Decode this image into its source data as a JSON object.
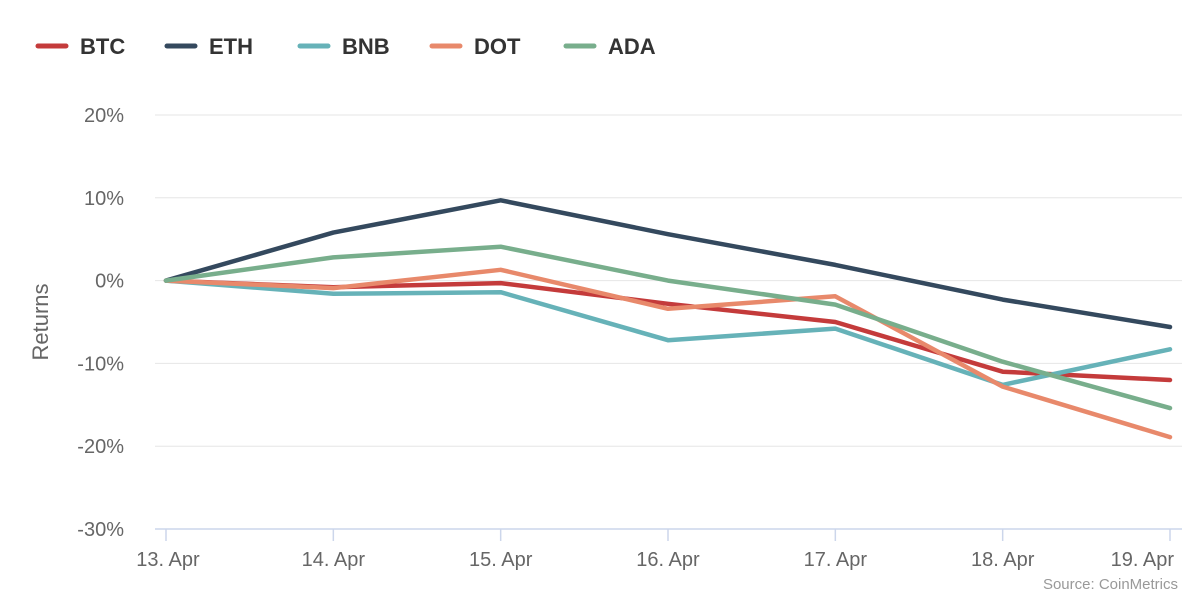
{
  "chart_data": {
    "type": "line",
    "categories": [
      "13. Apr",
      "14. Apr",
      "15. Apr",
      "16. Apr",
      "17. Apr",
      "18. Apr",
      "19. Apr"
    ],
    "series": [
      {
        "name": "BTC",
        "color": "#c43b3b",
        "values": [
          0,
          -0.8,
          -0.3,
          -2.8,
          -5.0,
          -11.0,
          -12.0
        ]
      },
      {
        "name": "ETH",
        "color": "#34495e",
        "values": [
          0,
          5.8,
          9.7,
          5.6,
          1.9,
          -2.3,
          -5.6
        ]
      },
      {
        "name": "BNB",
        "color": "#66b2b8",
        "values": [
          0,
          -1.6,
          -1.4,
          -7.2,
          -5.8,
          -12.6,
          -8.3
        ]
      },
      {
        "name": "DOT",
        "color": "#e8896b",
        "values": [
          0,
          -0.9,
          1.3,
          -3.4,
          -1.9,
          -12.8,
          -18.9
        ]
      },
      {
        "name": "ADA",
        "color": "#78ae8c",
        "values": [
          0,
          2.8,
          4.1,
          0.0,
          -2.9,
          -9.8,
          -15.4
        ]
      }
    ],
    "ylabel": "Returns",
    "ylim": [
      -30,
      20
    ],
    "yticks": [
      20,
      10,
      0,
      -10,
      -20,
      -30
    ],
    "ytick_labels": [
      "20%",
      "10%",
      "0%",
      "-10%",
      "-20%",
      "-30%"
    ],
    "grid": true,
    "legend_position": "top-left",
    "source": "Source: CoinMetrics"
  }
}
